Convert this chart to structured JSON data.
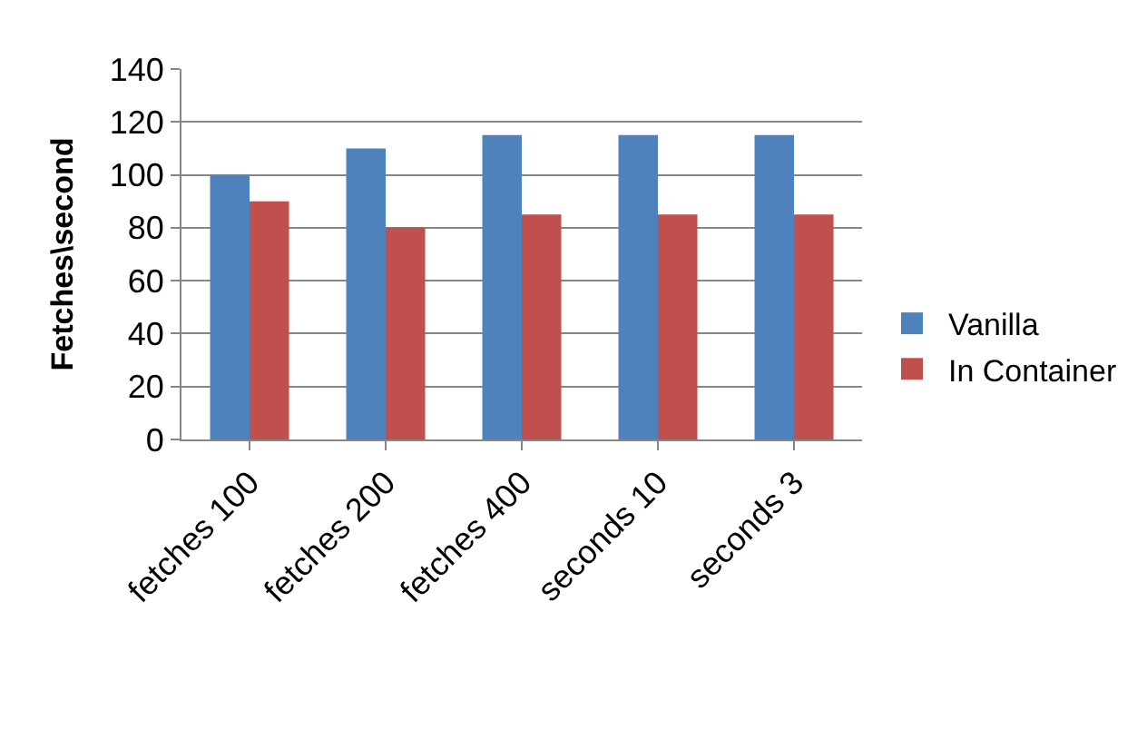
{
  "chart_data": {
    "type": "bar",
    "ylabel": "Fetches\\second",
    "categories": [
      "fetches 100",
      "fetches 200",
      "fetches 400",
      "seconds 10",
      "seconds 3"
    ],
    "series": [
      {
        "name": "Vanilla",
        "color": "#4f81bd",
        "values": [
          100,
          110,
          115,
          115,
          115
        ]
      },
      {
        "name": "In Container",
        "color": "#c0504d",
        "values": [
          90,
          80,
          85,
          85,
          85
        ]
      }
    ],
    "ylim": [
      0,
      140
    ],
    "yticks": [
      0,
      20,
      40,
      60,
      80,
      100,
      120,
      140
    ],
    "grid": "y",
    "legend": "right"
  }
}
